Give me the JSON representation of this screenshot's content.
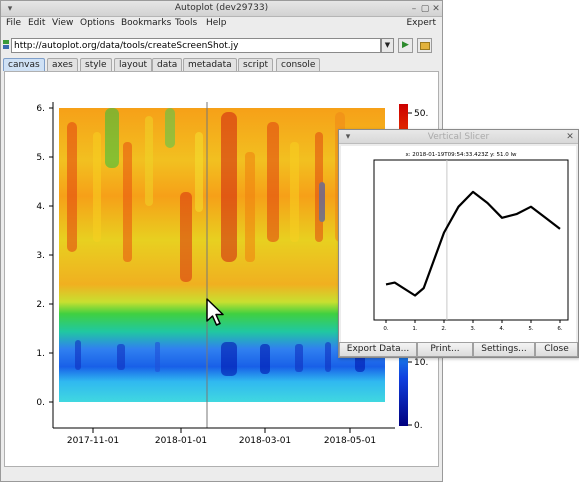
{
  "main_window": {
    "title": "Autoplot (dev29733)",
    "menu": [
      "File",
      "Edit",
      "View",
      "Options",
      "Bookmarks",
      "Tools",
      "Help"
    ],
    "menu_right": "Expert",
    "url": "http://autoplot.org/data/tools/createScreenShot.jy",
    "tabs": [
      "canvas",
      "axes",
      "style",
      "layout",
      "data",
      "metadata",
      "script",
      "console"
    ],
    "active_tab": "canvas"
  },
  "icons": {
    "url": "data-source-icon",
    "dropdown": "chevron-down-icon",
    "go": "play-icon",
    "bookmark": "folder-icon",
    "cursor": "mouse-pointer-icon"
  },
  "colors": {
    "tab_active": "#cfe1f5",
    "slice_line": "#000000",
    "colorbar_top": "#cc0000",
    "colorbar_bottom": "#00007f"
  },
  "chart_data": {
    "type": "heatmap",
    "y_ticks": [
      "0.",
      "1.",
      "2.",
      "3.",
      "4.",
      "5.",
      "6."
    ],
    "x_ticks": [
      "2017-11-01",
      "2018-01-01",
      "2018-03-01",
      "2018-05-01"
    ],
    "colorbar_ticks": [
      "50.",
      "10.",
      "0."
    ],
    "ylim": [
      0,
      6
    ]
  },
  "slicer": {
    "title": "Vertical Slicer",
    "header": "x: 2018-01-19T09:54:33.423Z y: 51.0 lw",
    "x_ticks": [
      "0.",
      "1.",
      "2.",
      "3.",
      "4.",
      "5.",
      "6."
    ],
    "x": [
      0.0,
      0.3,
      1.0,
      1.3,
      2.0,
      2.5,
      3.0,
      3.5,
      4.0,
      4.5,
      5.0,
      5.5,
      6.0
    ],
    "y": [
      18,
      18.5,
      15,
      17,
      32,
      39,
      43,
      40,
      36,
      37,
      39,
      36,
      33
    ],
    "ylim": [
      10,
      50
    ],
    "xlim": [
      0,
      6
    ],
    "marker_x": 2.1,
    "buttons": [
      "Export Data...",
      "Print...",
      "Settings...",
      "Close"
    ]
  }
}
